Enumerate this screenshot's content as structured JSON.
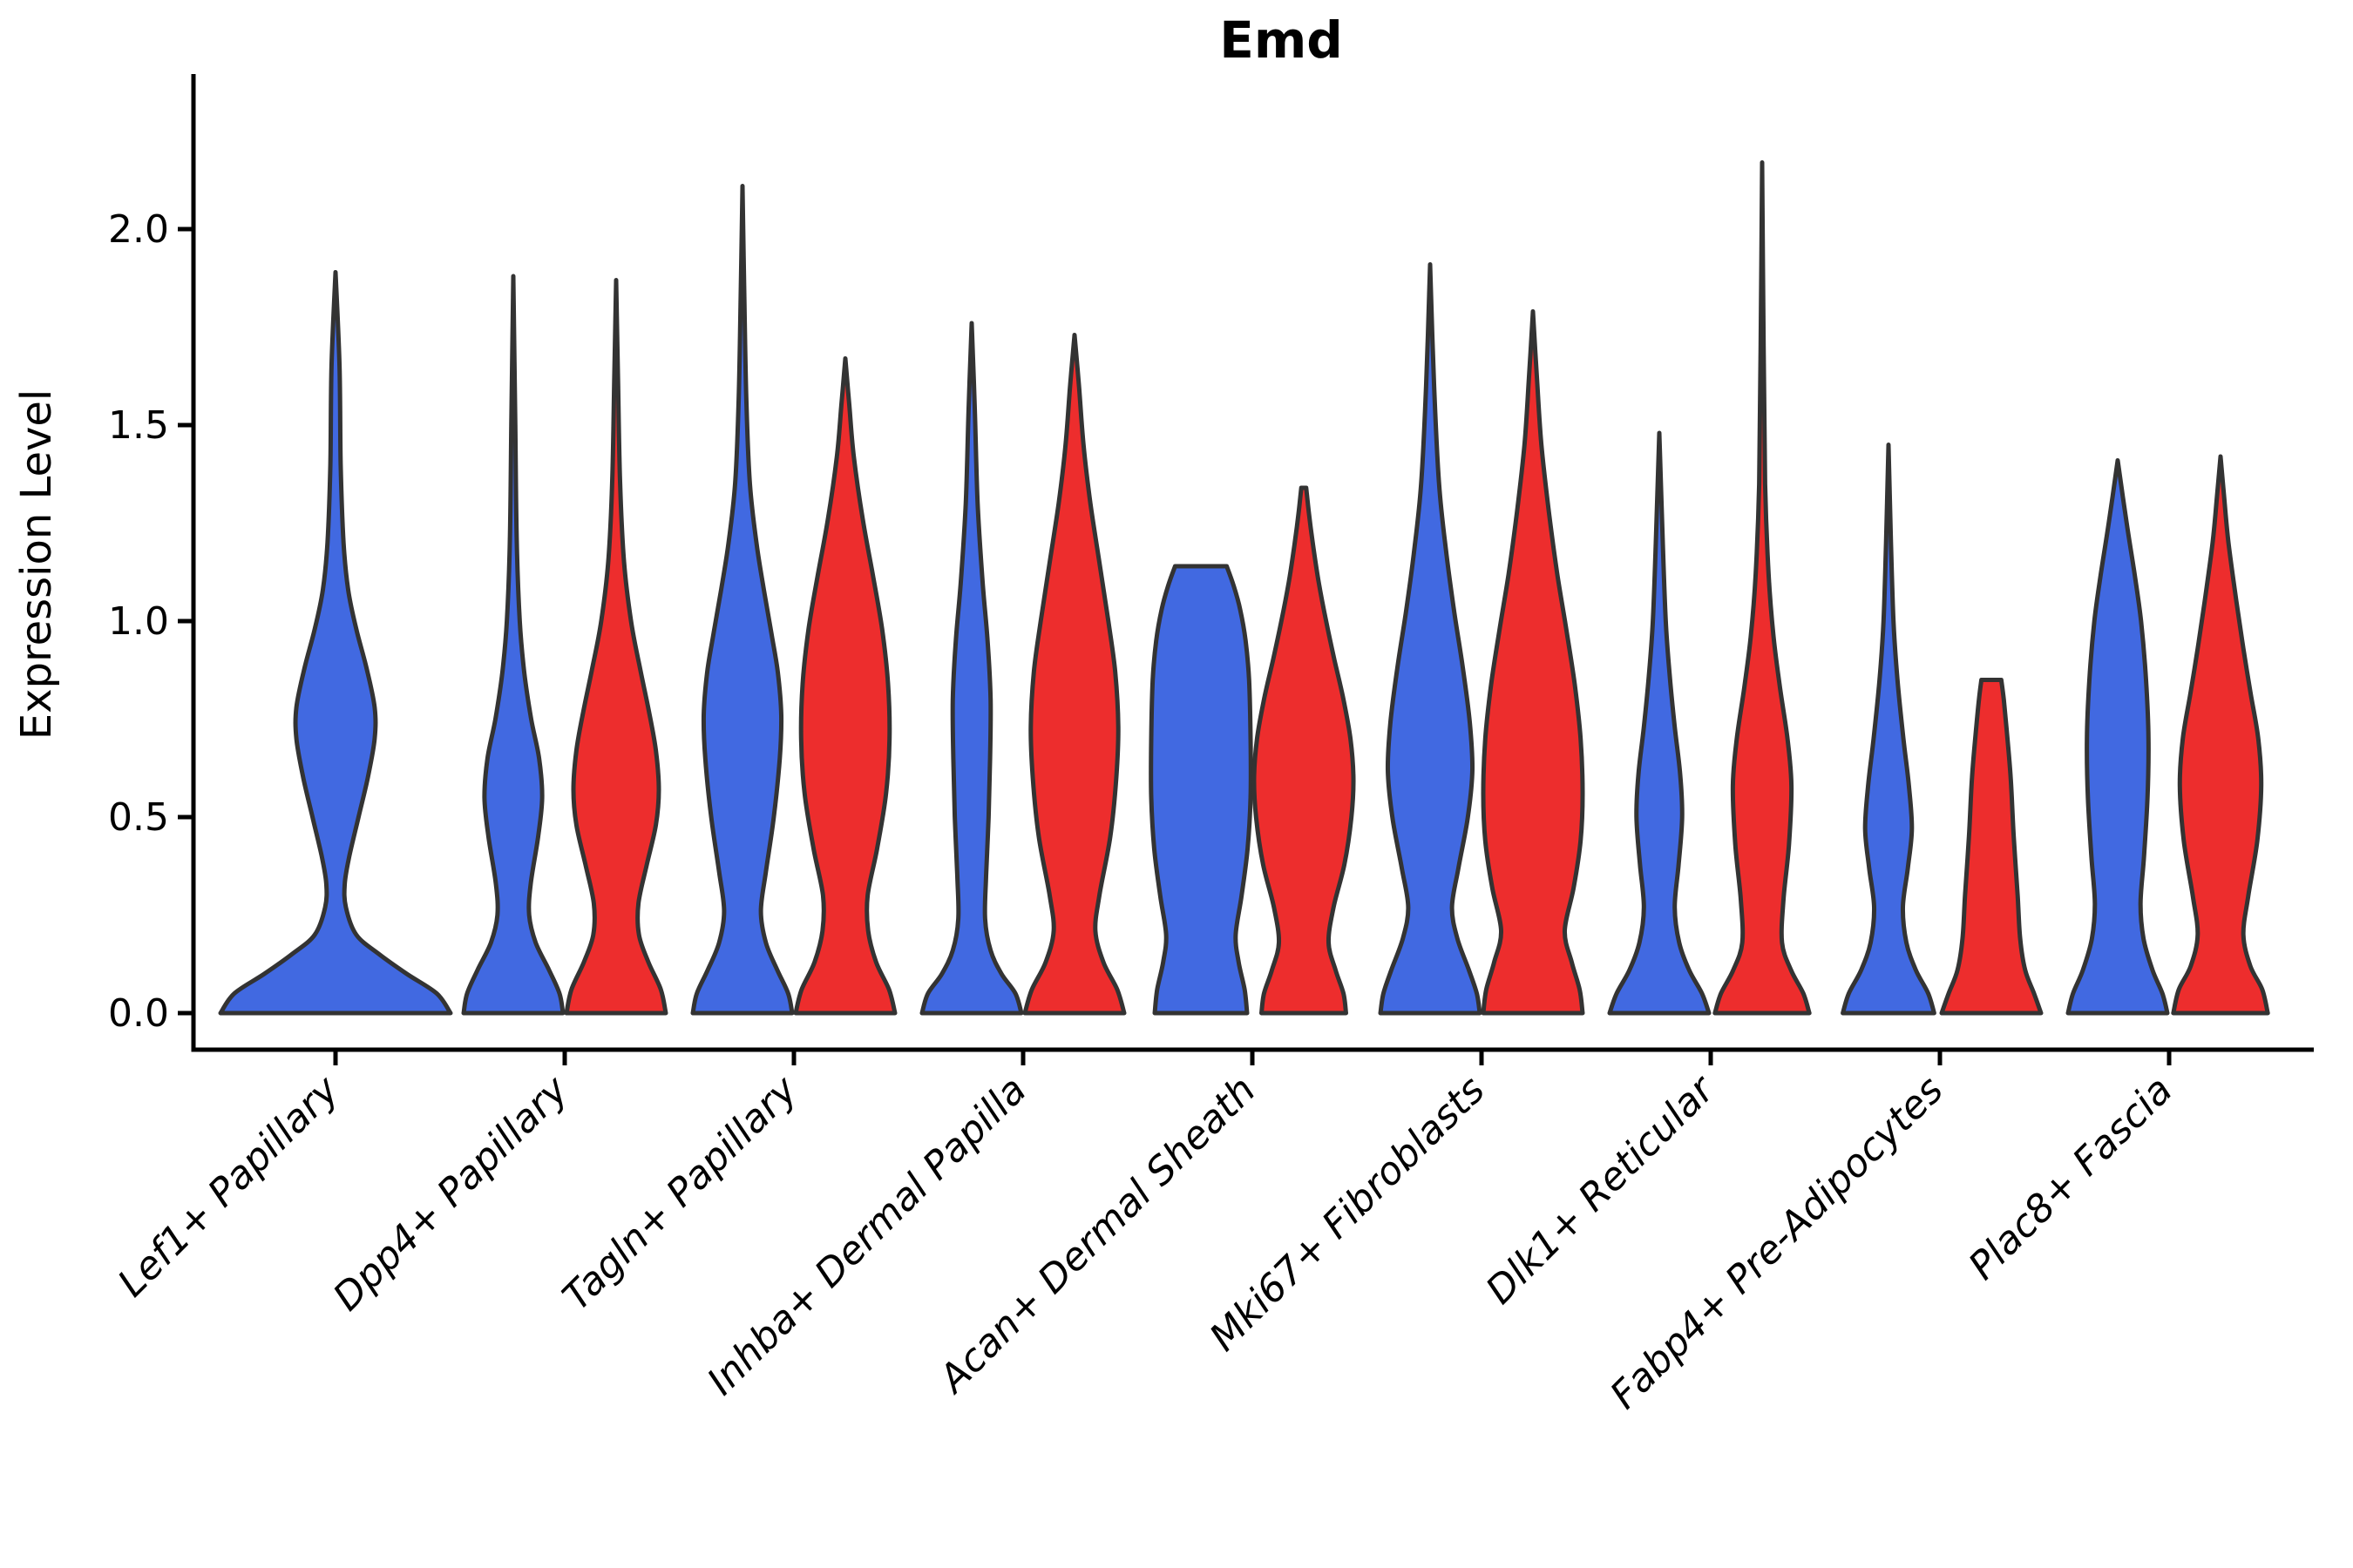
{
  "chart_data": {
    "type": "violin",
    "title": "Emd",
    "ylabel": "Expression Level",
    "xlabel": "",
    "legend": "none",
    "grid": false,
    "ylim": [
      -0.093,
      2.396
    ],
    "yticks": [
      0.0,
      0.5,
      1.0,
      1.5,
      2.0
    ],
    "ytick_labels": [
      "0.0",
      "0.5",
      "1.0",
      "1.5",
      "2.0"
    ],
    "categories": [
      "Lef1+ Papillary",
      "Dpp4+ Papillary",
      "Tagln+ Papillary",
      "Inhba+ Dermal Papilla",
      "Acan+ Dermal Sheath",
      "Mki67+ Fibroblasts",
      "Dlk1+ Reticular",
      "Fabp4+ Pre-Adipocytes",
      "Plac8+ Fascia"
    ],
    "colors": {
      "blue": "#4169E1",
      "red": "#ED2D2D",
      "outline": "#333333",
      "axis": "#000000"
    },
    "series": [
      {
        "name": "blue",
        "max_expression": [
          1.89,
          1.88,
          2.11,
          1.76,
          1.14,
          1.91,
          1.48,
          1.45,
          1.41
        ]
      },
      {
        "name": "red",
        "max_expression": [
          null,
          1.87,
          1.67,
          1.73,
          1.34,
          1.79,
          2.17,
          0.85,
          1.42
        ]
      }
    ],
    "violins": [
      {
        "category": "Lef1+ Papillary",
        "cat_index": 0,
        "split": "center",
        "color": "blue",
        "max": 1.89,
        "flat_top": false,
        "profile": [
          [
            0,
            1.0
          ],
          [
            0.05,
            0.88
          ],
          [
            0.1,
            0.62
          ],
          [
            0.15,
            0.38
          ],
          [
            0.2,
            0.18
          ],
          [
            0.27,
            0.09
          ],
          [
            0.33,
            0.08
          ],
          [
            0.4,
            0.12
          ],
          [
            0.5,
            0.2
          ],
          [
            0.6,
            0.28
          ],
          [
            0.7,
            0.34
          ],
          [
            0.78,
            0.34
          ],
          [
            0.88,
            0.27
          ],
          [
            0.98,
            0.18
          ],
          [
            1.08,
            0.11
          ],
          [
            1.2,
            0.07
          ],
          [
            1.4,
            0.045
          ],
          [
            1.65,
            0.035
          ],
          [
            1.89,
            0
          ]
        ]
      },
      {
        "category": "Dpp4+ Papillary",
        "cat_index": 1,
        "split": "left",
        "color": "blue",
        "max": 1.88,
        "flat_top": false,
        "profile": [
          [
            0,
            1.0
          ],
          [
            0.05,
            0.93
          ],
          [
            0.11,
            0.72
          ],
          [
            0.18,
            0.45
          ],
          [
            0.25,
            0.32
          ],
          [
            0.33,
            0.35
          ],
          [
            0.45,
            0.5
          ],
          [
            0.55,
            0.58
          ],
          [
            0.65,
            0.52
          ],
          [
            0.75,
            0.36
          ],
          [
            0.87,
            0.22
          ],
          [
            1.0,
            0.13
          ],
          [
            1.2,
            0.07
          ],
          [
            1.5,
            0.04
          ],
          [
            1.88,
            0
          ]
        ]
      },
      {
        "category": "Dpp4+ Papillary",
        "cat_index": 1,
        "split": "right",
        "color": "red",
        "max": 1.87,
        "flat_top": false,
        "profile": [
          [
            0,
            1.0
          ],
          [
            0.06,
            0.9
          ],
          [
            0.13,
            0.65
          ],
          [
            0.2,
            0.46
          ],
          [
            0.28,
            0.45
          ],
          [
            0.38,
            0.62
          ],
          [
            0.48,
            0.8
          ],
          [
            0.57,
            0.86
          ],
          [
            0.67,
            0.8
          ],
          [
            0.77,
            0.66
          ],
          [
            0.88,
            0.48
          ],
          [
            1.0,
            0.3
          ],
          [
            1.15,
            0.16
          ],
          [
            1.35,
            0.08
          ],
          [
            1.6,
            0.04
          ],
          [
            1.87,
            0
          ]
        ]
      },
      {
        "category": "Tagln+ Papillary",
        "cat_index": 2,
        "split": "left",
        "color": "blue",
        "max": 2.11,
        "flat_top": false,
        "profile": [
          [
            0,
            1.0
          ],
          [
            0.05,
            0.92
          ],
          [
            0.11,
            0.7
          ],
          [
            0.18,
            0.47
          ],
          [
            0.26,
            0.37
          ],
          [
            0.36,
            0.47
          ],
          [
            0.5,
            0.63
          ],
          [
            0.65,
            0.75
          ],
          [
            0.76,
            0.78
          ],
          [
            0.87,
            0.71
          ],
          [
            0.97,
            0.58
          ],
          [
            1.08,
            0.43
          ],
          [
            1.2,
            0.28
          ],
          [
            1.35,
            0.15
          ],
          [
            1.55,
            0.08
          ],
          [
            1.8,
            0.04
          ],
          [
            2.11,
            0
          ]
        ]
      },
      {
        "category": "Tagln+ Papillary",
        "cat_index": 2,
        "split": "right",
        "color": "red",
        "max": 1.67,
        "flat_top": false,
        "profile": [
          [
            0,
            1.0
          ],
          [
            0.06,
            0.88
          ],
          [
            0.13,
            0.62
          ],
          [
            0.21,
            0.46
          ],
          [
            0.3,
            0.45
          ],
          [
            0.42,
            0.64
          ],
          [
            0.56,
            0.82
          ],
          [
            0.7,
            0.89
          ],
          [
            0.84,
            0.86
          ],
          [
            0.98,
            0.74
          ],
          [
            1.12,
            0.55
          ],
          [
            1.26,
            0.35
          ],
          [
            1.42,
            0.17
          ],
          [
            1.55,
            0.08
          ],
          [
            1.67,
            0
          ]
        ]
      },
      {
        "category": "Inhba+ Dermal Papilla",
        "cat_index": 3,
        "split": "left",
        "color": "blue",
        "max": 1.76,
        "flat_top": false,
        "profile": [
          [
            0,
            1.0
          ],
          [
            0.05,
            0.88
          ],
          [
            0.1,
            0.6
          ],
          [
            0.16,
            0.38
          ],
          [
            0.24,
            0.27
          ],
          [
            0.35,
            0.29
          ],
          [
            0.5,
            0.34
          ],
          [
            0.65,
            0.37
          ],
          [
            0.8,
            0.38
          ],
          [
            0.95,
            0.32
          ],
          [
            1.1,
            0.22
          ],
          [
            1.3,
            0.12
          ],
          [
            1.55,
            0.06
          ],
          [
            1.76,
            0
          ]
        ]
      },
      {
        "category": "Inhba+ Dermal Papilla",
        "cat_index": 3,
        "split": "right",
        "color": "red",
        "max": 1.73,
        "flat_top": false,
        "profile": [
          [
            0,
            1.0
          ],
          [
            0.06,
            0.86
          ],
          [
            0.13,
            0.58
          ],
          [
            0.21,
            0.42
          ],
          [
            0.3,
            0.5
          ],
          [
            0.45,
            0.72
          ],
          [
            0.6,
            0.84
          ],
          [
            0.73,
            0.88
          ],
          [
            0.87,
            0.82
          ],
          [
            1.0,
            0.68
          ],
          [
            1.15,
            0.5
          ],
          [
            1.3,
            0.32
          ],
          [
            1.45,
            0.18
          ],
          [
            1.6,
            0.09
          ],
          [
            1.73,
            0
          ]
        ]
      },
      {
        "category": "Acan+ Dermal Sheath",
        "cat_index": 4,
        "split": "left",
        "color": "blue",
        "max": 1.14,
        "flat_top": true,
        "profile": [
          [
            0,
            0.93
          ],
          [
            0.06,
            0.88
          ],
          [
            0.13,
            0.76
          ],
          [
            0.2,
            0.7
          ],
          [
            0.3,
            0.82
          ],
          [
            0.42,
            0.94
          ],
          [
            0.55,
            1.0
          ],
          [
            0.7,
            1.0
          ],
          [
            0.85,
            0.97
          ],
          [
            0.95,
            0.9
          ],
          [
            1.03,
            0.79
          ],
          [
            1.09,
            0.66
          ],
          [
            1.14,
            0.52
          ]
        ]
      },
      {
        "category": "Acan+ Dermal Sheath",
        "cat_index": 4,
        "split": "right",
        "color": "red",
        "max": 1.34,
        "flat_top": true,
        "profile": [
          [
            0,
            0.85
          ],
          [
            0.05,
            0.8
          ],
          [
            0.11,
            0.64
          ],
          [
            0.18,
            0.5
          ],
          [
            0.27,
            0.6
          ],
          [
            0.38,
            0.82
          ],
          [
            0.5,
            0.96
          ],
          [
            0.6,
            1.0
          ],
          [
            0.7,
            0.94
          ],
          [
            0.8,
            0.8
          ],
          [
            0.9,
            0.62
          ],
          [
            1.0,
            0.45
          ],
          [
            1.1,
            0.3
          ],
          [
            1.2,
            0.18
          ],
          [
            1.28,
            0.1
          ],
          [
            1.34,
            0.05
          ]
        ]
      },
      {
        "category": "Mki67+ Fibroblasts",
        "cat_index": 5,
        "split": "left",
        "color": "blue",
        "max": 1.91,
        "flat_top": false,
        "profile": [
          [
            0,
            1.0
          ],
          [
            0.05,
            0.94
          ],
          [
            0.11,
            0.78
          ],
          [
            0.19,
            0.55
          ],
          [
            0.27,
            0.44
          ],
          [
            0.37,
            0.57
          ],
          [
            0.5,
            0.76
          ],
          [
            0.62,
            0.85
          ],
          [
            0.74,
            0.8
          ],
          [
            0.88,
            0.66
          ],
          [
            1.02,
            0.49
          ],
          [
            1.17,
            0.33
          ],
          [
            1.35,
            0.18
          ],
          [
            1.6,
            0.08
          ],
          [
            1.91,
            0
          ]
        ]
      },
      {
        "category": "Mki67+ Fibroblasts",
        "cat_index": 5,
        "split": "right",
        "color": "red",
        "max": 1.79,
        "flat_top": false,
        "profile": [
          [
            0,
            1.0
          ],
          [
            0.06,
            0.94
          ],
          [
            0.13,
            0.78
          ],
          [
            0.21,
            0.64
          ],
          [
            0.32,
            0.82
          ],
          [
            0.44,
            0.96
          ],
          [
            0.56,
            1.0
          ],
          [
            0.7,
            0.96
          ],
          [
            0.84,
            0.84
          ],
          [
            0.98,
            0.67
          ],
          [
            1.12,
            0.49
          ],
          [
            1.28,
            0.32
          ],
          [
            1.45,
            0.17
          ],
          [
            1.62,
            0.08
          ],
          [
            1.79,
            0
          ]
        ]
      },
      {
        "category": "Dlk1+ Reticular",
        "cat_index": 6,
        "split": "left",
        "color": "blue",
        "max": 1.48,
        "flat_top": false,
        "profile": [
          [
            0,
            1.0
          ],
          [
            0.05,
            0.86
          ],
          [
            0.11,
            0.6
          ],
          [
            0.18,
            0.4
          ],
          [
            0.27,
            0.31
          ],
          [
            0.38,
            0.39
          ],
          [
            0.5,
            0.46
          ],
          [
            0.61,
            0.42
          ],
          [
            0.73,
            0.31
          ],
          [
            0.86,
            0.21
          ],
          [
            1.0,
            0.13
          ],
          [
            1.2,
            0.07
          ],
          [
            1.48,
            0
          ]
        ]
      },
      {
        "category": "Dlk1+ Reticular",
        "cat_index": 6,
        "split": "right",
        "color": "red",
        "max": 2.17,
        "flat_top": false,
        "profile": [
          [
            0,
            0.95
          ],
          [
            0.05,
            0.83
          ],
          [
            0.11,
            0.58
          ],
          [
            0.18,
            0.4
          ],
          [
            0.29,
            0.43
          ],
          [
            0.43,
            0.54
          ],
          [
            0.58,
            0.59
          ],
          [
            0.7,
            0.51
          ],
          [
            0.83,
            0.36
          ],
          [
            0.96,
            0.23
          ],
          [
            1.12,
            0.13
          ],
          [
            1.35,
            0.06
          ],
          [
            1.7,
            0.03
          ],
          [
            2.17,
            0
          ]
        ]
      },
      {
        "category": "Fabp4+ Pre-Adipocytes",
        "cat_index": 7,
        "split": "left",
        "color": "blue",
        "max": 1.45,
        "flat_top": false,
        "profile": [
          [
            0,
            0.92
          ],
          [
            0.05,
            0.8
          ],
          [
            0.11,
            0.55
          ],
          [
            0.18,
            0.36
          ],
          [
            0.27,
            0.29
          ],
          [
            0.37,
            0.39
          ],
          [
            0.47,
            0.47
          ],
          [
            0.58,
            0.41
          ],
          [
            0.7,
            0.3
          ],
          [
            0.85,
            0.18
          ],
          [
            1.0,
            0.1
          ],
          [
            1.2,
            0.05
          ],
          [
            1.45,
            0
          ]
        ]
      },
      {
        "category": "Fabp4+ Pre-Adipocytes",
        "cat_index": 7,
        "split": "right",
        "color": "red",
        "max": 0.85,
        "flat_top": true,
        "profile": [
          [
            0,
            1.0
          ],
          [
            0.05,
            0.86
          ],
          [
            0.11,
            0.68
          ],
          [
            0.19,
            0.58
          ],
          [
            0.3,
            0.53
          ],
          [
            0.45,
            0.45
          ],
          [
            0.6,
            0.39
          ],
          [
            0.72,
            0.31
          ],
          [
            0.8,
            0.25
          ],
          [
            0.85,
            0.2
          ]
        ]
      },
      {
        "category": "Plac8+ Fascia",
        "cat_index": 8,
        "split": "left",
        "color": "blue",
        "max": 1.41,
        "flat_top": false,
        "profile": [
          [
            0,
            1.0
          ],
          [
            0.05,
            0.9
          ],
          [
            0.11,
            0.7
          ],
          [
            0.19,
            0.52
          ],
          [
            0.28,
            0.46
          ],
          [
            0.4,
            0.53
          ],
          [
            0.55,
            0.6
          ],
          [
            0.7,
            0.62
          ],
          [
            0.85,
            0.57
          ],
          [
            1.0,
            0.47
          ],
          [
            1.12,
            0.34
          ],
          [
            1.25,
            0.18
          ],
          [
            1.41,
            0
          ]
        ]
      },
      {
        "category": "Plac8+ Fascia",
        "cat_index": 8,
        "split": "right",
        "color": "red",
        "max": 1.42,
        "flat_top": false,
        "profile": [
          [
            0,
            0.95
          ],
          [
            0.06,
            0.84
          ],
          [
            0.12,
            0.6
          ],
          [
            0.2,
            0.46
          ],
          [
            0.3,
            0.56
          ],
          [
            0.44,
            0.74
          ],
          [
            0.58,
            0.82
          ],
          [
            0.7,
            0.76
          ],
          [
            0.82,
            0.6
          ],
          [
            0.93,
            0.46
          ],
          [
            1.05,
            0.32
          ],
          [
            1.2,
            0.16
          ],
          [
            1.32,
            0.07
          ],
          [
            1.42,
            0
          ]
        ]
      }
    ]
  }
}
